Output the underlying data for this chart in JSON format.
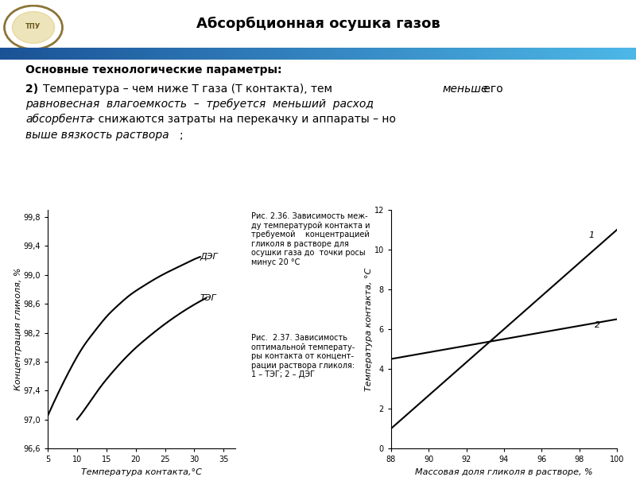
{
  "title": "Абсорбционная осушка газов",
  "header_text": "Основные технологические параметры:",
  "body_text_line1": "2) Температура – чем ниже Т газа (Т контакта), тем меньше его",
  "body_text_line2": "равновесная  влагоемкость  –  требуется  меньший  расход",
  "body_text_line3": "абсорбента – снижаются затраты на перекачку и аппараты – но",
  "body_text_line4": "выше вязкость раствора;",
  "chart1": {
    "xlabel": "Температура контакта,°С",
    "ylabel": "Концентрация гликоля, %",
    "xlim": [
      5,
      37
    ],
    "ylim": [
      96.6,
      99.9
    ],
    "xticks": [
      5,
      10,
      15,
      20,
      25,
      30,
      35
    ],
    "yticks": [
      96.6,
      97.0,
      97.4,
      97.8,
      98.2,
      98.6,
      99.0,
      99.4,
      99.8
    ],
    "ytick_labels": [
      "96,6",
      "97,0",
      "97,4",
      "97,8",
      "98,2",
      "98,6",
      "99,0",
      "99,4",
      "99,8"
    ],
    "deg_x": [
      5,
      7,
      9,
      11,
      13,
      15,
      17,
      19,
      21,
      23,
      25,
      27,
      29,
      31
    ],
    "deg_y": [
      97.05,
      97.4,
      97.72,
      98.0,
      98.22,
      98.42,
      98.58,
      98.72,
      98.83,
      98.93,
      99.02,
      99.1,
      99.18,
      99.25
    ],
    "teg_x": [
      10,
      12,
      14,
      16,
      18,
      20,
      22,
      24,
      26,
      28,
      30,
      32
    ],
    "teg_y": [
      97.0,
      97.22,
      97.45,
      97.65,
      97.83,
      97.99,
      98.13,
      98.26,
      98.38,
      98.49,
      98.59,
      98.68
    ],
    "deg_label": "ДЭГ",
    "teg_label": "ТЭГ",
    "caption": "Рис. 2.36. Зависимость меж-\nду температурой контакта и\nтребуемой    концентрацией\nгликоля в растворе для\nосушки газа до  точки росы\nминус 20 °C"
  },
  "chart2": {
    "xlabel": "Массовая доля гликоля в растворе, %",
    "ylabel": "Температура контакта, °C",
    "xlim": [
      88,
      100
    ],
    "ylim": [
      0,
      12
    ],
    "xticks": [
      88,
      90,
      92,
      94,
      96,
      98,
      100
    ],
    "yticks": [
      0,
      2,
      4,
      6,
      8,
      10,
      12
    ],
    "line1_x": [
      88,
      100
    ],
    "line1_y": [
      1.0,
      11.0
    ],
    "line2_x": [
      88,
      100
    ],
    "line2_y": [
      4.5,
      6.5
    ],
    "line1_label": "1",
    "line2_label": "2",
    "caption": "Рис.  2.37. Зависимость\nоптимальной температу-\nры контакта от концент-\nрации раствора гликоля:\n1 – ТЭГ; 2 – ДЭГ"
  },
  "bg_color": "#ffffff",
  "header_bg": "#d8d8d8",
  "bar_color1": "#1a5296",
  "bar_color2": "#4db8e8"
}
